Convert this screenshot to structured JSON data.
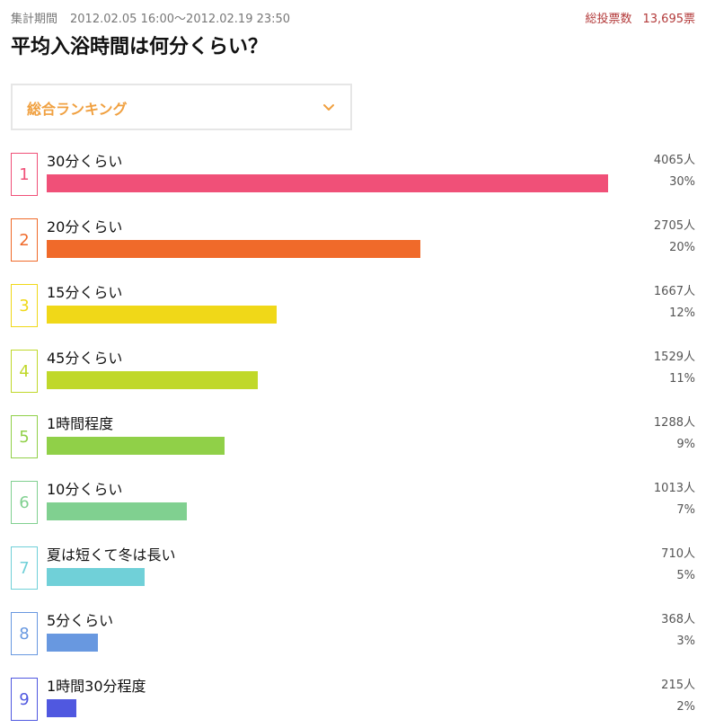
{
  "header": {
    "period_label": "集計期間",
    "period_value": "2012.02.05 16:00〜2012.02.19 23:50",
    "total_label": "総投票数",
    "total_value": "13,695票",
    "title": "平均入浴時間は何分くらい？"
  },
  "dropdown": {
    "label": "総合ランキング",
    "icon": "chevron-down-icon",
    "color": "#f0a040"
  },
  "chart_data": {
    "type": "bar",
    "categories": [
      "30分くらい",
      "20分くらい",
      "15分くらい",
      "45分くらい",
      "1時間程度",
      "10分くらい",
      "夏は短くて冬は長い",
      "5分くらい",
      "1時間30分程度"
    ],
    "ranks": [
      "1",
      "2",
      "3",
      "4",
      "5",
      "6",
      "7",
      "8",
      "9"
    ],
    "values": [
      4065,
      2705,
      1667,
      1529,
      1288,
      1013,
      710,
      368,
      215
    ],
    "votes_text": [
      "4065人",
      "2705人",
      "1667人",
      "1529人",
      "1288人",
      "1013人",
      "710人",
      "368人",
      "215人"
    ],
    "percent_text": [
      "30%",
      "20%",
      "12%",
      "11%",
      "9%",
      "7%",
      "5%",
      "3%",
      "2%"
    ],
    "colors": [
      "#f05078",
      "#f06a2a",
      "#f0d818",
      "#c0d82a",
      "#90d048",
      "#80d090",
      "#70d0d8",
      "#6898e0",
      "#5058e0"
    ]
  }
}
